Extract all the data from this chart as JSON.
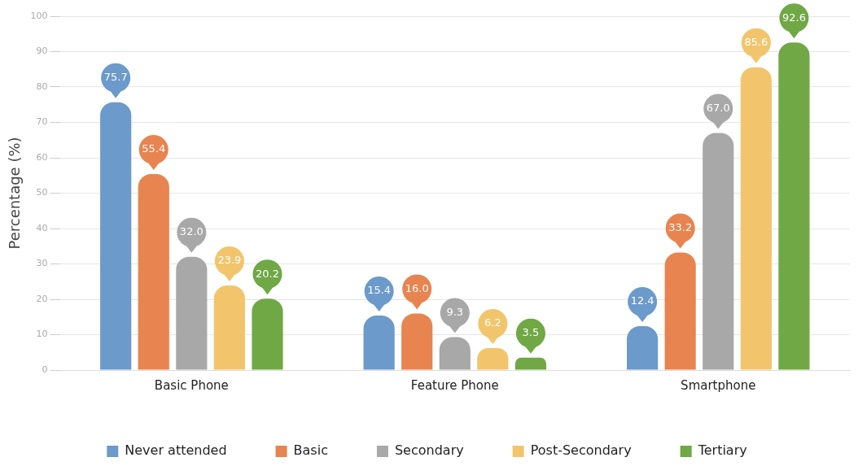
{
  "chart_data": {
    "type": "bar",
    "ylabel": "Percentage (%)",
    "categories": [
      "Basic Phone",
      "Feature Phone",
      "Smartphone"
    ],
    "series": [
      {
        "name": "Never attended",
        "color": "#6b9acb",
        "values": [
          75.7,
          15.4,
          12.4
        ],
        "value_labels": [
          "75.7",
          "15.4",
          "12.4"
        ]
      },
      {
        "name": "Basic",
        "color": "#e8844f",
        "values": [
          55.4,
          16.0,
          33.2
        ],
        "value_labels": [
          "55.4",
          "16.0",
          "33.2"
        ]
      },
      {
        "name": "Secondary",
        "color": "#a8a8a8",
        "values": [
          32.0,
          9.3,
          67.0
        ],
        "value_labels": [
          "32.0",
          "9.3",
          "67.0"
        ]
      },
      {
        "name": "Post-Secondary",
        "color": "#f2c56c",
        "values": [
          23.9,
          6.2,
          85.6
        ],
        "value_labels": [
          "23.9",
          "6.2",
          "85.6"
        ]
      },
      {
        "name": "Tertiary",
        "color": "#70a845",
        "values": [
          20.2,
          3.5,
          92.6
        ],
        "value_labels": [
          "20.2",
          "3.5",
          "92.6"
        ]
      }
    ],
    "ylim": [
      0,
      100
    ],
    "yticks": [
      0,
      10,
      20,
      30,
      40,
      50,
      60,
      70,
      80,
      90,
      100
    ],
    "grid": "y",
    "legend": "bottom"
  }
}
